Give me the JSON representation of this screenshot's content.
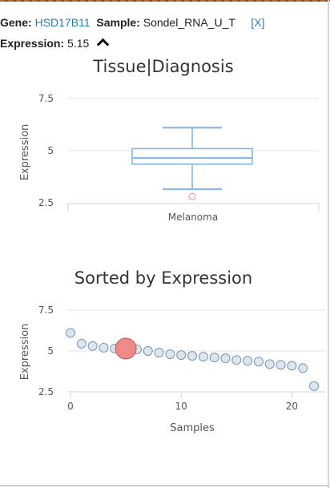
{
  "header": {
    "gene_label": "Gene:",
    "gene_value": "HSD17B11",
    "sample_label": "Sample:",
    "sample_value": "Sondel_RNA_U_T",
    "close_label": "[X]",
    "expression_label": "Expression:",
    "expression_value": "5.15"
  },
  "chart_data": [
    {
      "type": "box",
      "title": "Tissue|Diagnosis",
      "ylabel": "Expression",
      "categories": [
        "Melanoma"
      ],
      "yticks": [
        "7.5",
        "5",
        "2.5"
      ],
      "ylim": [
        2.5,
        7.5
      ],
      "box": {
        "min": 3.15,
        "q1": 4.35,
        "median": 4.65,
        "q3": 5.1,
        "max": 6.1
      },
      "outliers": [
        2.8
      ],
      "colors": {
        "box": "#7fb2e5",
        "outlier": "#f08a96"
      }
    },
    {
      "type": "scatter",
      "title": "Sorted by Expression",
      "ylabel": "Expression",
      "xlabel": "Samples",
      "xticks": [
        "0",
        "10",
        "20"
      ],
      "yticks": [
        "7.5",
        "5",
        "2.5"
      ],
      "ylim": [
        2.5,
        7.5
      ],
      "xlim": [
        0,
        22
      ],
      "highlight_index": 5,
      "values": [
        6.1,
        5.45,
        5.3,
        5.2,
        5.15,
        5.15,
        5.1,
        5.0,
        4.9,
        4.8,
        4.75,
        4.7,
        4.65,
        4.6,
        4.55,
        4.45,
        4.4,
        4.35,
        4.2,
        4.15,
        4.1,
        3.95,
        2.85
      ],
      "colors": {
        "point": "#dde6f0",
        "stroke": "#7a94ad",
        "highlight": "#ee8a8a"
      }
    }
  ]
}
